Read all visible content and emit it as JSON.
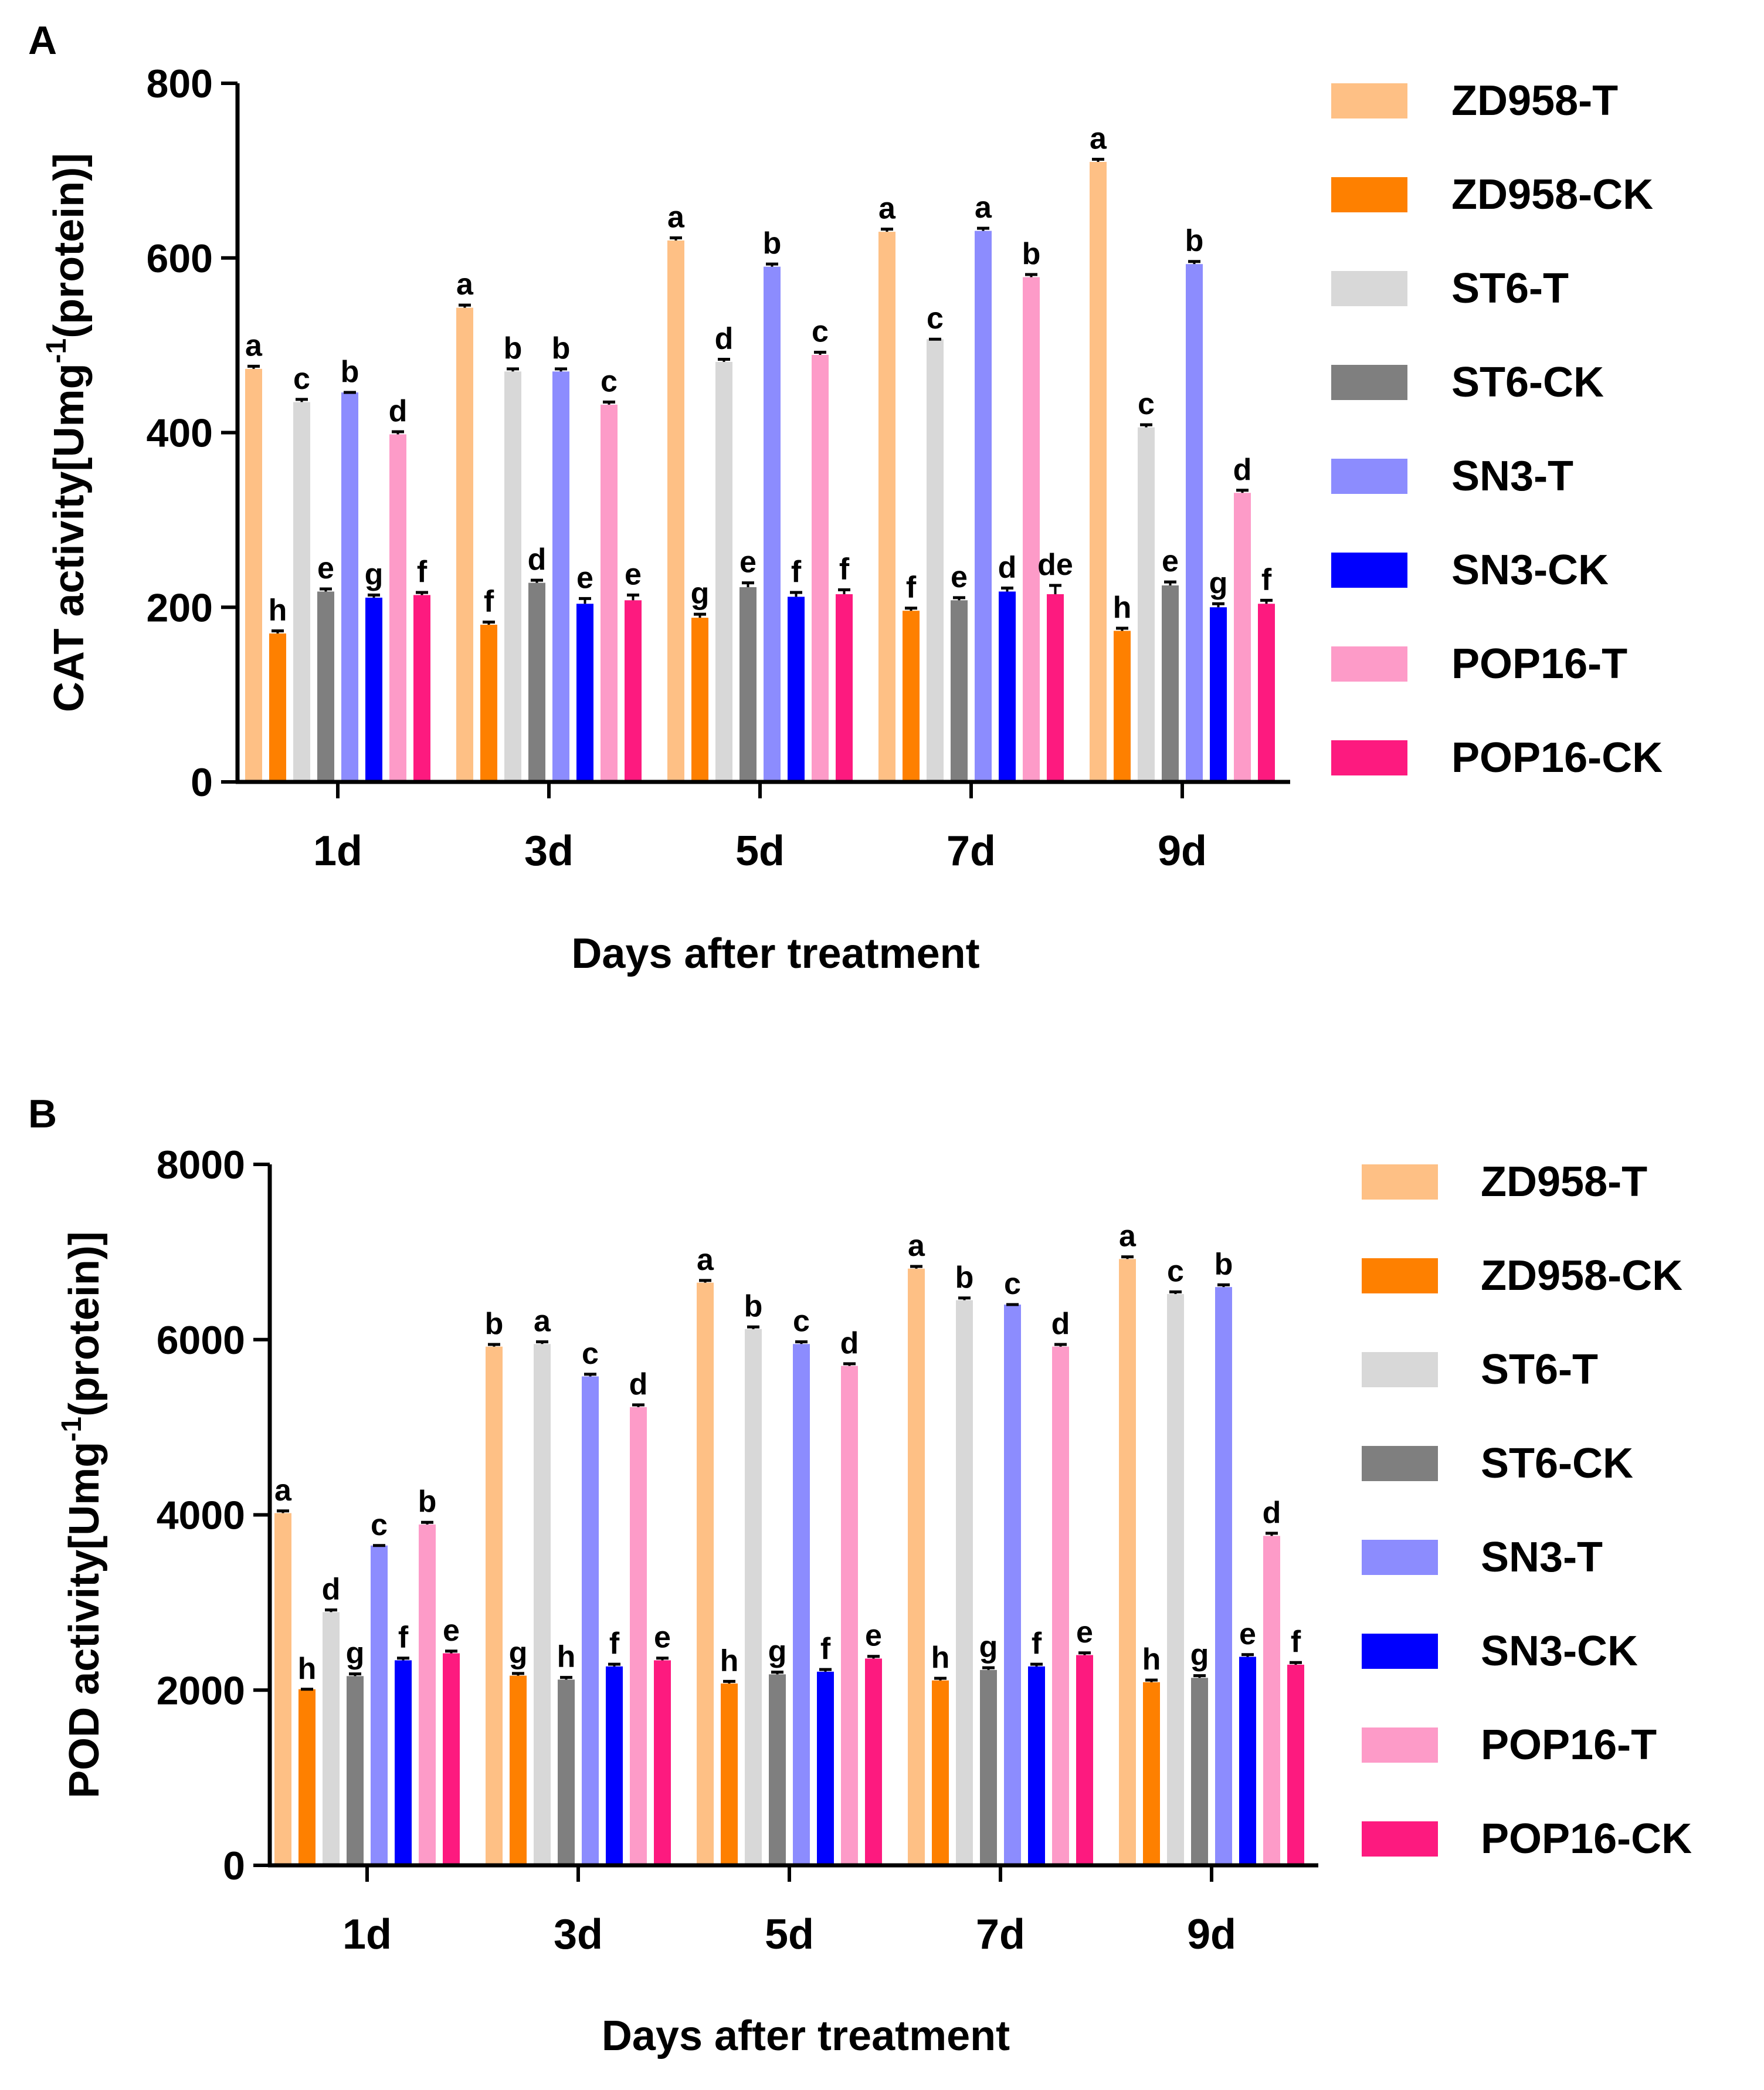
{
  "series_colors": [
    "#fec085",
    "#fe8000",
    "#d8d8d8",
    "#7f7f7f",
    "#8c8cfe",
    "#0000fe",
    "#fd9bc8",
    "#fd1a7f"
  ],
  "chart_data": [
    {
      "type": "bar",
      "panel": "A",
      "categories": [
        "1d",
        "3d",
        "5d",
        "7d",
        "9d"
      ],
      "ylabel": "CAT activity[Umg-1(protein)]",
      "ylabel_main": "CAT activity[Umg",
      "ylabel_sup": "-1",
      "ylabel_tail": "(protein)]",
      "xlabel": "Days after treatment",
      "ylim": [
        0,
        800
      ],
      "yticks": [
        0,
        200,
        400,
        600,
        800
      ],
      "ytick_labels": [
        "0",
        "200",
        "400",
        "600",
        "800"
      ],
      "series": [
        {
          "name": "ZD958-T",
          "values": [
            473,
            543,
            620,
            630,
            710
          ],
          "letters": [
            "a",
            "a",
            "a",
            "a",
            "a"
          ],
          "err": [
            3,
            3,
            3,
            3,
            3
          ]
        },
        {
          "name": "ZD958-CK",
          "values": [
            170,
            180,
            188,
            196,
            173
          ],
          "letters": [
            "h",
            "f",
            "g",
            "f",
            "h"
          ],
          "err": [
            3,
            3,
            4,
            3,
            3
          ]
        },
        {
          "name": "ST6-T",
          "values": [
            435,
            470,
            481,
            507,
            406
          ],
          "letters": [
            "c",
            "b",
            "d",
            "c",
            "c"
          ],
          "err": [
            3,
            3,
            3,
            0,
            3
          ]
        },
        {
          "name": "ST6-CK",
          "values": [
            218,
            228,
            223,
            208,
            225
          ],
          "letters": [
            "e",
            "d",
            "e",
            "e",
            "e"
          ],
          "err": [
            3,
            3,
            5,
            3,
            4
          ]
        },
        {
          "name": "SN3-T",
          "values": [
            446,
            470,
            590,
            631,
            593
          ],
          "letters": [
            "b",
            "b",
            "b",
            "a",
            "b"
          ],
          "err": [
            0,
            3,
            3,
            3,
            3
          ]
        },
        {
          "name": "SN3-CK",
          "values": [
            211,
            204,
            212,
            218,
            200
          ],
          "letters": [
            "g",
            "e",
            "f",
            "d",
            "g"
          ],
          "err": [
            3,
            6,
            5,
            4,
            4
          ]
        },
        {
          "name": "POP16-T",
          "values": [
            398,
            432,
            489,
            578,
            331
          ],
          "letters": [
            "d",
            "c",
            "c",
            "b",
            "d"
          ],
          "err": [
            3,
            3,
            3,
            3,
            3
          ]
        },
        {
          "name": "POP16-CK",
          "values": [
            214,
            208,
            215,
            215,
            204
          ],
          "letters": [
            "f",
            "e",
            "f",
            "de",
            "f"
          ],
          "err": [
            3,
            6,
            5,
            10,
            4
          ]
        }
      ]
    },
    {
      "type": "bar",
      "panel": "B",
      "categories": [
        "1d",
        "3d",
        "5d",
        "7d",
        "9d"
      ],
      "ylabel": "POD activity[Umg-1(protein)]",
      "ylabel_main": "POD activity[Umg",
      "ylabel_sup": "-1",
      "ylabel_tail": "(protein)]",
      "xlabel": "Days after treatment",
      "ylim": [
        0,
        8000
      ],
      "yticks": [
        0,
        2000,
        4000,
        6000,
        8000
      ],
      "ytick_labels": [
        "0",
        "2000",
        "4000",
        "6000",
        "8000"
      ],
      "series": [
        {
          "name": "ZD958-T",
          "values": [
            4020,
            5920,
            6650,
            6810,
            6920
          ],
          "letters": [
            "a",
            "b",
            "a",
            "a",
            "a"
          ],
          "err": [
            25,
            25,
            25,
            25,
            25
          ]
        },
        {
          "name": "ZD958-CK",
          "values": [
            2010,
            2165,
            2075,
            2110,
            2090
          ],
          "letters": [
            "h",
            "g",
            "h",
            "h",
            "h"
          ],
          "err": [
            0,
            25,
            25,
            25,
            25
          ]
        },
        {
          "name": "ST6-T",
          "values": [
            2890,
            5950,
            6120,
            6450,
            6520
          ],
          "letters": [
            "d",
            "a",
            "b",
            "b",
            "c"
          ],
          "err": [
            25,
            25,
            25,
            25,
            25
          ]
        },
        {
          "name": "ST6-CK",
          "values": [
            2160,
            2120,
            2180,
            2230,
            2140
          ],
          "letters": [
            "g",
            "h",
            "g",
            "g",
            "g"
          ],
          "err": [
            25,
            25,
            25,
            25,
            25
          ]
        },
        {
          "name": "SN3-T",
          "values": [
            3650,
            5580,
            5950,
            6400,
            6600
          ],
          "letters": [
            "c",
            "c",
            "c",
            "c",
            "b"
          ],
          "err": [
            0,
            25,
            25,
            0,
            25
          ]
        },
        {
          "name": "SN3-CK",
          "values": [
            2340,
            2270,
            2210,
            2270,
            2380
          ],
          "letters": [
            "f",
            "f",
            "f",
            "f",
            "e"
          ],
          "err": [
            25,
            25,
            25,
            25,
            25
          ]
        },
        {
          "name": "POP16-T",
          "values": [
            3890,
            5230,
            5700,
            5920,
            3760
          ],
          "letters": [
            "b",
            "d",
            "d",
            "d",
            "d"
          ],
          "err": [
            25,
            25,
            25,
            25,
            30
          ]
        },
        {
          "name": "POP16-CK",
          "values": [
            2420,
            2340,
            2360,
            2400,
            2290
          ],
          "letters": [
            "e",
            "e",
            "e",
            "e",
            "f"
          ],
          "err": [
            25,
            25,
            25,
            25,
            25
          ]
        }
      ]
    }
  ]
}
